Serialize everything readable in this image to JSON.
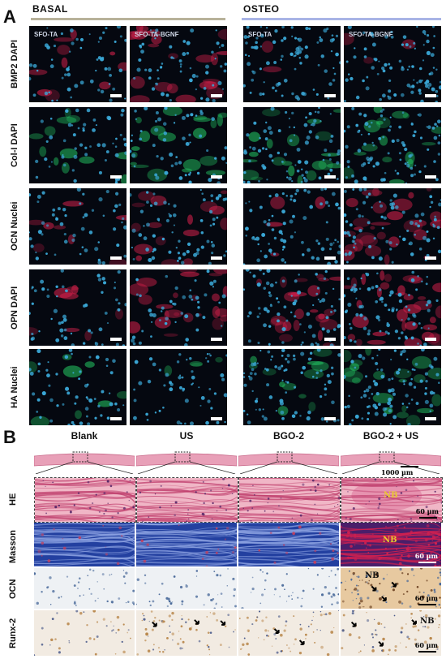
{
  "panelA": {
    "letter": "A",
    "groups": [
      "BASAL",
      "OSTEO"
    ],
    "column_labels": [
      "SFO-TA",
      "SFO-TA-BGNF",
      "SFO-TA",
      "SFO-TA-BGNF"
    ],
    "row_labels": [
      "BMP2 DAPI",
      "Col-I DAPI",
      "OCN Nuclei",
      "OPN DAPI",
      "HA Nuclei"
    ]
  },
  "panelB": {
    "letter": "B",
    "column_labels": [
      "Blank",
      "US",
      "BGO-2",
      "BGO-2 + US"
    ],
    "row_labels": [
      "HE",
      "Masson",
      "OCN",
      "Runx-2"
    ],
    "scale_overview": "1000 µm",
    "scale_detail": "60 µm",
    "nb_label": "NB"
  },
  "colors": {
    "group_line_basal": "#b8b29a",
    "group_line_osteo": "#a9b4e6",
    "fluor_bg": "#050810",
    "dapi": "#3aa7d6",
    "red": "#d0204a",
    "green": "#22c060",
    "he_pink": "#e8a0b8",
    "masson_blue": "#2340a0",
    "ihc_bg": "#eef1f4",
    "ihc_brown": "#b8864a",
    "nb_yellow": "#e8c830"
  }
}
